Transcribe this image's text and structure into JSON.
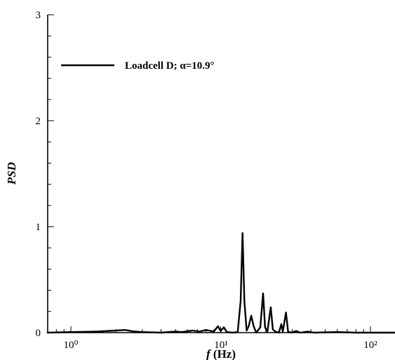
{
  "chart_data": {
    "type": "line",
    "xscale": "log",
    "xlim": [
      0.7,
      150
    ],
    "ylim": [
      0,
      3
    ],
    "xlabel": {
      "var": "f",
      "unit": " (Hz)"
    },
    "ylabel": "PSD",
    "x_tick_labels": [
      "10⁰",
      "10¹",
      "10²"
    ],
    "y_tick_labels": [
      "0",
      "1",
      "2",
      "3"
    ],
    "grid": false,
    "legend_position": "top-left",
    "series": [
      {
        "name": "Loadcell D; α=10.9°",
        "color": "#000000",
        "points": [
          [
            0.7,
            0.0
          ],
          [
            1.0,
            0.005
          ],
          [
            1.5,
            0.01
          ],
          [
            2.0,
            0.02
          ],
          [
            2.3,
            0.025
          ],
          [
            2.6,
            0.012
          ],
          [
            3.0,
            0.005
          ],
          [
            4.0,
            0.0
          ],
          [
            5.0,
            0.01
          ],
          [
            5.5,
            0.005
          ],
          [
            6.5,
            0.02
          ],
          [
            7.2,
            0.01
          ],
          [
            8.0,
            0.025
          ],
          [
            9.0,
            0.01
          ],
          [
            9.6,
            0.06
          ],
          [
            10.0,
            0.015
          ],
          [
            10.5,
            0.05
          ],
          [
            11.0,
            0.005
          ],
          [
            12.0,
            0.0
          ],
          [
            13.0,
            0.005
          ],
          [
            13.6,
            0.3
          ],
          [
            14.0,
            0.94
          ],
          [
            14.4,
            0.3
          ],
          [
            14.9,
            0.02
          ],
          [
            15.4,
            0.06
          ],
          [
            16.0,
            0.16
          ],
          [
            16.6,
            0.06
          ],
          [
            17.3,
            0.0
          ],
          [
            18.4,
            0.05
          ],
          [
            19.2,
            0.37
          ],
          [
            19.8,
            0.05
          ],
          [
            20.5,
            0.01
          ],
          [
            21.6,
            0.24
          ],
          [
            22.3,
            0.03
          ],
          [
            23.2,
            0.01
          ],
          [
            24.5,
            0.0
          ],
          [
            25.4,
            0.08
          ],
          [
            26.0,
            0.01
          ],
          [
            27.3,
            0.19
          ],
          [
            28.2,
            0.01
          ],
          [
            29.5,
            0.0
          ],
          [
            32.0,
            0.015
          ],
          [
            34.0,
            0.0
          ],
          [
            38.0,
            0.01
          ],
          [
            42.0,
            0.0
          ],
          [
            60.0,
            0.005
          ],
          [
            80.0,
            0.0
          ],
          [
            150.0,
            0.0
          ]
        ]
      }
    ]
  }
}
